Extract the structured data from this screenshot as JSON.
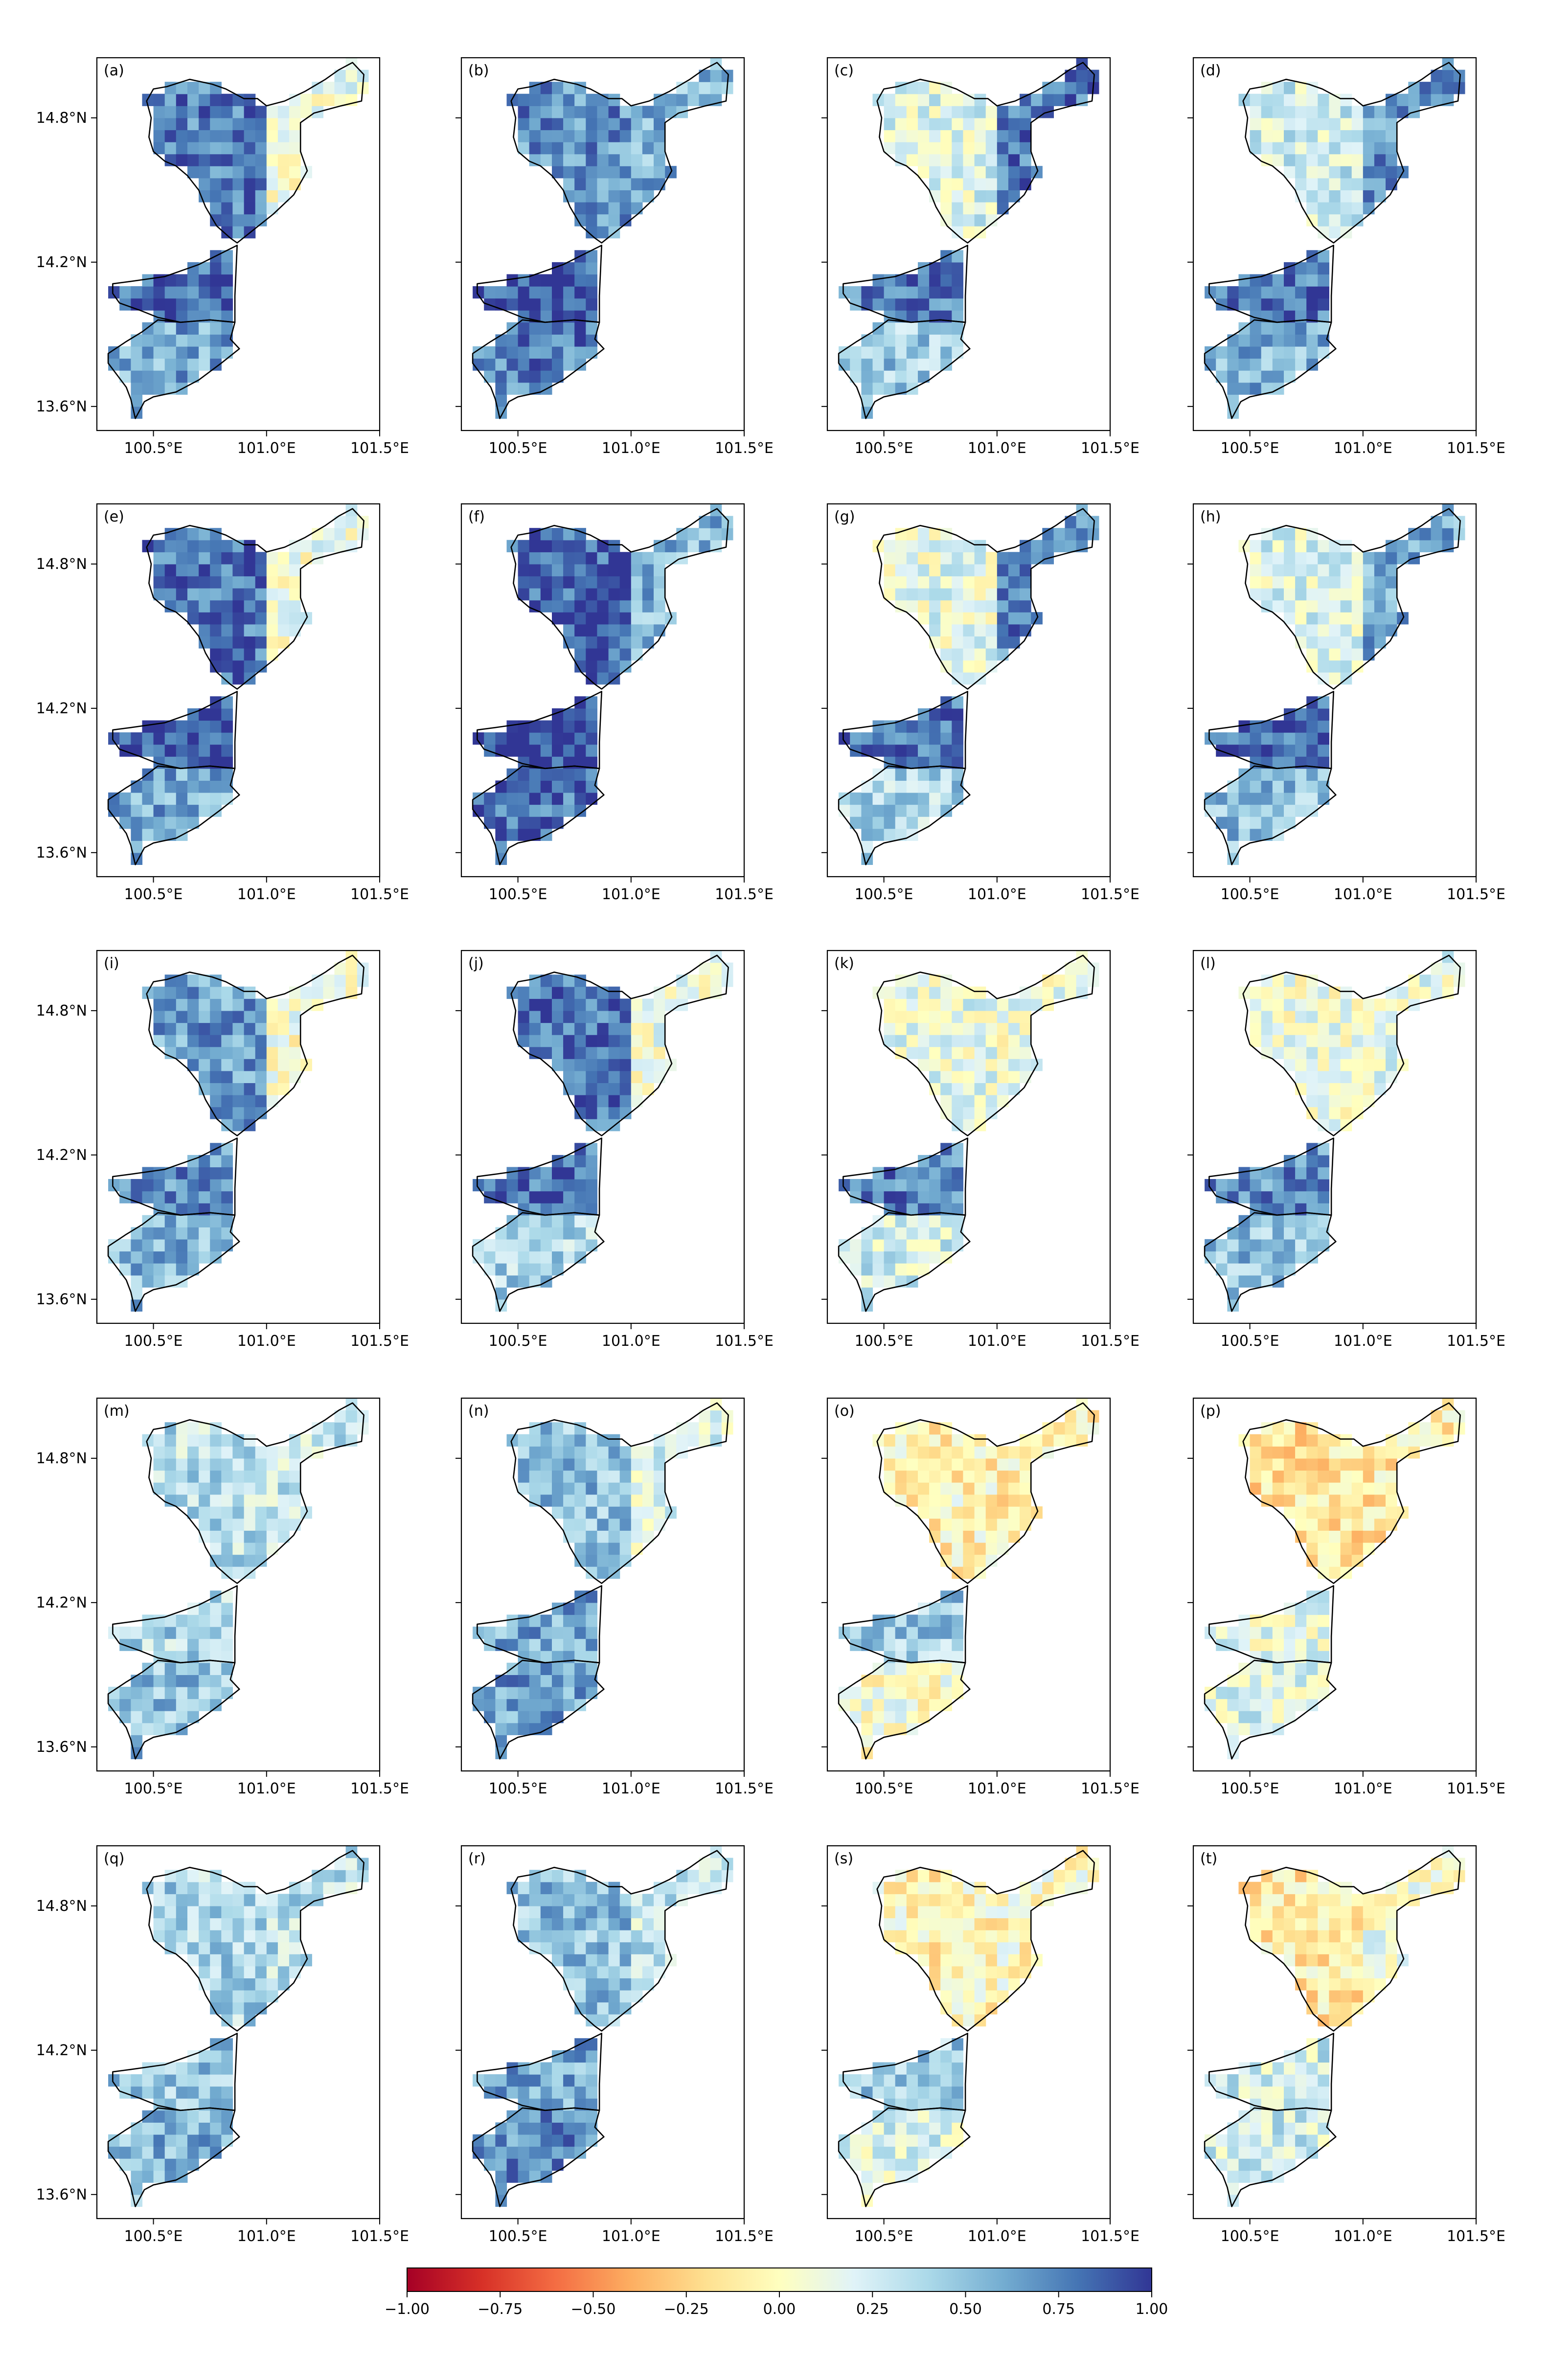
{
  "chart_data": {
    "type": "heatmap",
    "panel_labels": [
      "(a)",
      "(b)",
      "(c)",
      "(d)",
      "(e)",
      "(f)",
      "(g)",
      "(h)",
      "(i)",
      "(j)",
      "(k)",
      "(l)",
      "(m)",
      "(n)",
      "(o)",
      "(p)",
      "(q)",
      "(r)",
      "(s)",
      "(t)"
    ],
    "grid": {
      "rows": 5,
      "cols": 4
    },
    "xlim": [
      100.25,
      101.5
    ],
    "ylim": [
      13.5,
      15.05
    ],
    "x_ticks": [
      100.5,
      101.0,
      101.5
    ],
    "x_tick_labels": [
      "100.5°E",
      "101.0°E",
      "101.5°E"
    ],
    "y_ticks": [
      13.6,
      14.2,
      14.8
    ],
    "y_tick_labels": [
      "13.6°N",
      "14.2°N",
      "14.8°N"
    ],
    "colorbar": {
      "cmap": "RdYlBu",
      "range": [
        -1.0,
        1.0
      ],
      "ticks": [
        -1.0,
        -0.75,
        -0.5,
        -0.25,
        0.0,
        0.25,
        0.5,
        0.75,
        1.0
      ],
      "tick_labels": [
        "−1.00",
        "−0.75",
        "−0.50",
        "−0.25",
        "0.00",
        "0.25",
        "0.50",
        "0.75",
        "1.00"
      ]
    },
    "panel_zone_means": [
      {
        "north_west": 0.75,
        "north_east": 0.1,
        "center": 0.85,
        "south": 0.6
      },
      {
        "north_west": 0.7,
        "north_east": 0.55,
        "center": 0.9,
        "south": 0.75
      },
      {
        "north_west": 0.2,
        "north_east": 0.8,
        "center": 0.75,
        "south": 0.45
      },
      {
        "north_west": 0.25,
        "north_east": 0.7,
        "center": 0.8,
        "south": 0.55
      },
      {
        "north_west": 0.8,
        "north_east": 0.1,
        "center": 0.9,
        "south": 0.6
      },
      {
        "north_west": 0.85,
        "north_east": 0.55,
        "center": 0.95,
        "south": 0.8
      },
      {
        "north_west": 0.15,
        "north_east": 0.75,
        "center": 0.8,
        "south": 0.4
      },
      {
        "north_west": 0.2,
        "north_east": 0.6,
        "center": 0.85,
        "south": 0.5
      },
      {
        "north_west": 0.65,
        "north_east": 0.05,
        "center": 0.7,
        "south": 0.55
      },
      {
        "north_west": 0.8,
        "north_east": 0.1,
        "center": 0.8,
        "south": 0.4
      },
      {
        "north_west": 0.15,
        "north_east": 0.1,
        "center": 0.75,
        "south": 0.25
      },
      {
        "north_west": 0.1,
        "north_east": 0.15,
        "center": 0.7,
        "south": 0.5
      },
      {
        "north_west": 0.35,
        "north_east": 0.3,
        "center": 0.4,
        "south": 0.5
      },
      {
        "north_west": 0.5,
        "north_east": 0.2,
        "center": 0.6,
        "south": 0.65
      },
      {
        "north_west": -0.05,
        "north_east": -0.08,
        "center": 0.45,
        "south": 0.05
      },
      {
        "north_west": -0.15,
        "north_east": -0.12,
        "center": 0.15,
        "south": 0.2
      },
      {
        "north_west": 0.4,
        "north_east": 0.35,
        "center": 0.45,
        "south": 0.55
      },
      {
        "north_west": 0.5,
        "north_east": 0.3,
        "center": 0.6,
        "south": 0.7
      },
      {
        "north_west": -0.05,
        "north_east": 0.0,
        "center": 0.45,
        "south": 0.2
      },
      {
        "north_west": -0.12,
        "north_east": 0.1,
        "center": 0.25,
        "south": 0.25
      }
    ]
  }
}
